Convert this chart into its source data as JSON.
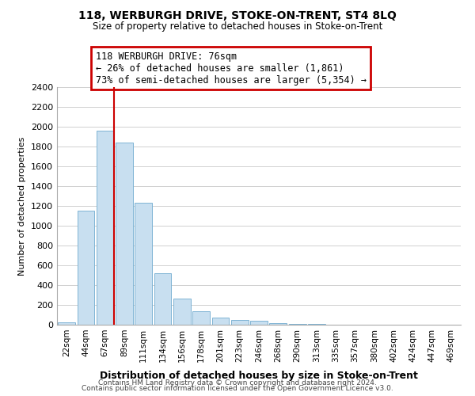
{
  "title": "118, WERBURGH DRIVE, STOKE-ON-TRENT, ST4 8LQ",
  "subtitle": "Size of property relative to detached houses in Stoke-on-Trent",
  "xlabel": "Distribution of detached houses by size in Stoke-on-Trent",
  "ylabel": "Number of detached properties",
  "bins": [
    "22sqm",
    "44sqm",
    "67sqm",
    "89sqm",
    "111sqm",
    "134sqm",
    "156sqm",
    "178sqm",
    "201sqm",
    "223sqm",
    "246sqm",
    "268sqm",
    "290sqm",
    "313sqm",
    "335sqm",
    "357sqm",
    "380sqm",
    "402sqm",
    "424sqm",
    "447sqm",
    "469sqm"
  ],
  "values": [
    25,
    1150,
    1960,
    1840,
    1230,
    520,
    265,
    140,
    75,
    50,
    40,
    15,
    8,
    5,
    2,
    1,
    1,
    0,
    0,
    0,
    0
  ],
  "bar_color": "#c8dff0",
  "bar_edge_color": "#7fb4d4",
  "annotation_title": "118 WERBURGH DRIVE: 76sqm",
  "annotation_line1": "← 26% of detached houses are smaller (1,861)",
  "annotation_line2": "73% of semi-detached houses are larger (5,354) →",
  "annotation_box_color": "#ffffff",
  "annotation_box_edge": "#cc0000",
  "red_line_color": "#cc0000",
  "ylim": [
    0,
    2400
  ],
  "yticks": [
    0,
    200,
    400,
    600,
    800,
    1000,
    1200,
    1400,
    1600,
    1800,
    2000,
    2200,
    2400
  ],
  "footer1": "Contains HM Land Registry data © Crown copyright and database right 2024.",
  "footer2": "Contains public sector information licensed under the Open Government Licence v3.0.",
  "red_line_bin_index": 2,
  "bar_width": 0.9
}
